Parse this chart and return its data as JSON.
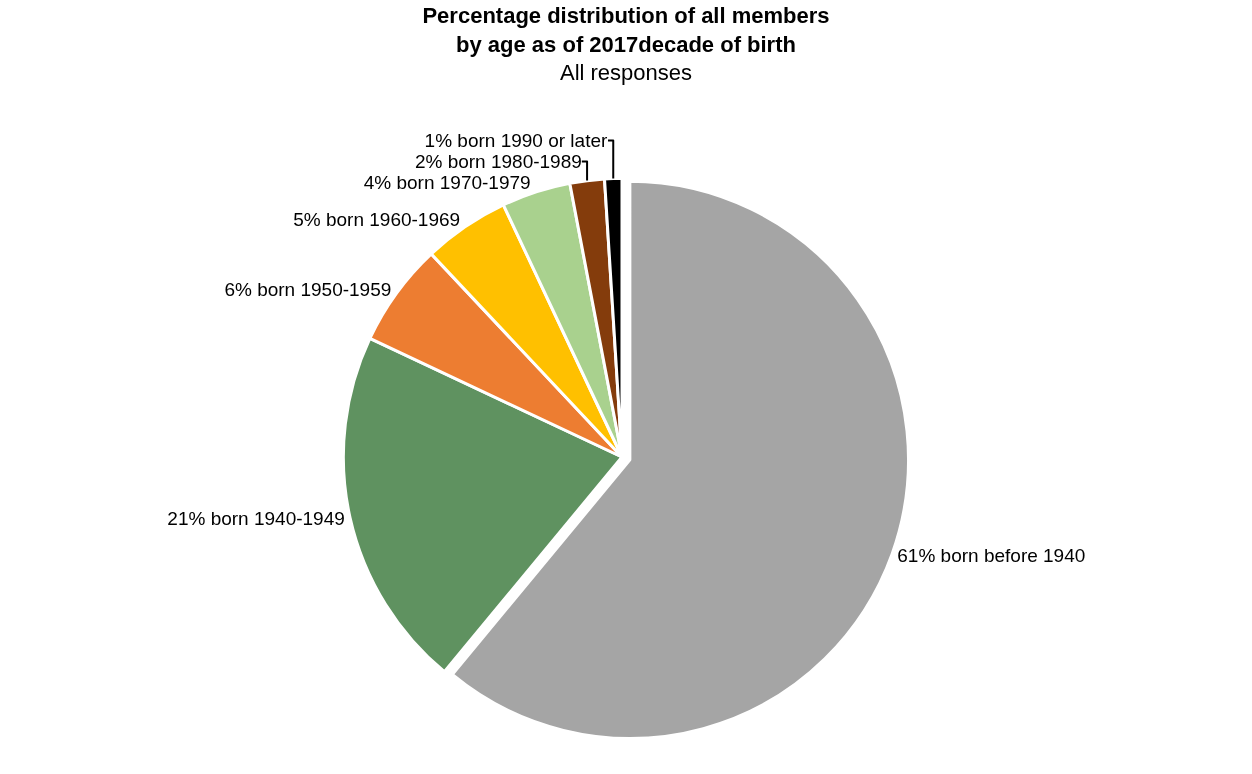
{
  "chart_data": {
    "type": "pie",
    "title": "Percentage distribution of all members\nby age as of 2017decade of birth",
    "subtitle": "All responses",
    "categories": [
      "61% born before 1940",
      "21% born 1940-1949",
      "6% born 1950-1959",
      "5% born 1960-1969",
      "4% born 1970-1979",
      "2% born 1980-1989",
      "1% born 1990 or later"
    ],
    "values": [
      61,
      21,
      6,
      5,
      4,
      2,
      1
    ],
    "colors": [
      "#a5a5a5",
      "#5f9260",
      "#ed7d31",
      "#ffc000",
      "#a9d18e",
      "#843c0c",
      "#000000"
    ],
    "legend": false
  }
}
